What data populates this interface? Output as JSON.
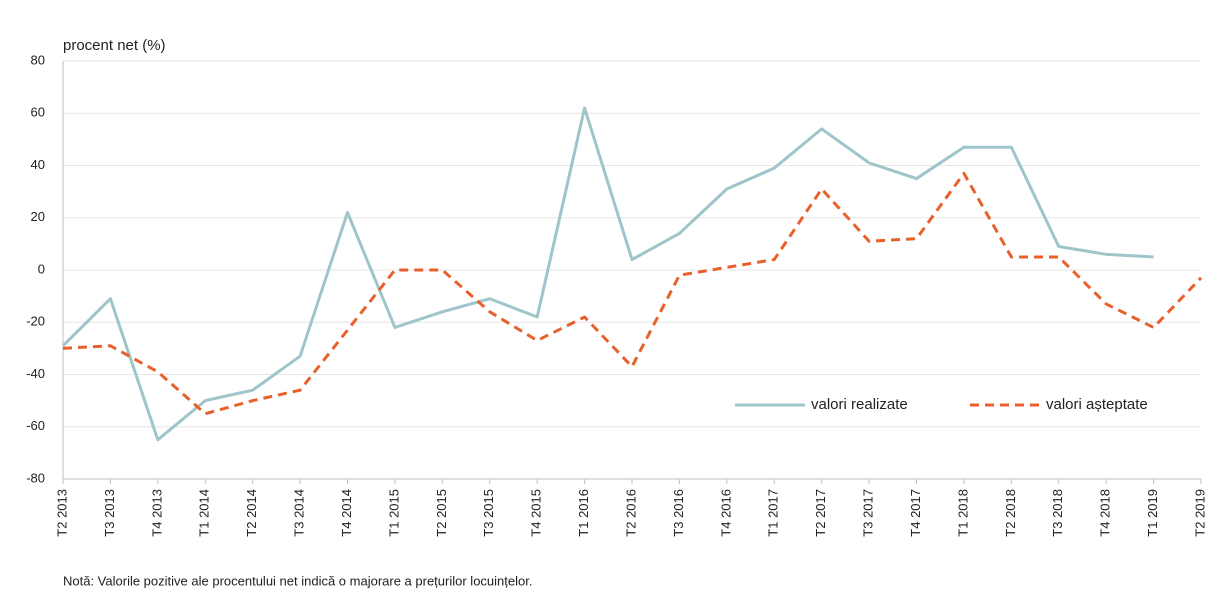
{
  "chart_data": {
    "type": "line",
    "y_label": "procent net (%)",
    "note": "Notă: Valorile pozitive ale procentului net indică o majorare a prețurilor locuințelor.",
    "categories": [
      "T2 2013",
      "T3 2013",
      "T4 2013",
      "T1 2014",
      "T2 2014",
      "T3 2014",
      "T4 2014",
      "T1 2015",
      "T2 2015",
      "T3 2015",
      "T4 2015",
      "T1 2016",
      "T2 2016",
      "T3 2016",
      "T4 2016",
      "T1 2017",
      "T2 2017",
      "T3 2017",
      "T4 2017",
      "T1 2018",
      "T2 2018",
      "T3 2018",
      "T4 2018",
      "T1 2019",
      "T2 2019"
    ],
    "series": [
      {
        "name": "valori realizate",
        "color": "#9ec5c9",
        "dashed": false,
        "values": [
          -29,
          -11,
          -65,
          -50,
          -46,
          -33,
          22,
          -22,
          -16,
          -11,
          -18,
          62,
          4,
          14,
          31,
          39,
          54,
          41,
          35,
          47,
          47,
          9,
          6,
          5,
          null
        ]
      },
      {
        "name": "valori așteptate",
        "color": "#e8612c",
        "dashed": true,
        "values": [
          -30,
          -29,
          -39,
          -55,
          -50,
          -46,
          -23,
          0,
          0,
          -16,
          -27,
          -18,
          -37,
          -2,
          1,
          4,
          31,
          11,
          12,
          37,
          5,
          5,
          -13,
          -22,
          -3
        ]
      }
    ],
    "ylim": [
      -80,
      80
    ],
    "yticks": [
      -80,
      -60,
      -40,
      -20,
      0,
      20,
      40,
      60,
      80
    ],
    "grid": true,
    "legend": "inside-lower-right"
  }
}
